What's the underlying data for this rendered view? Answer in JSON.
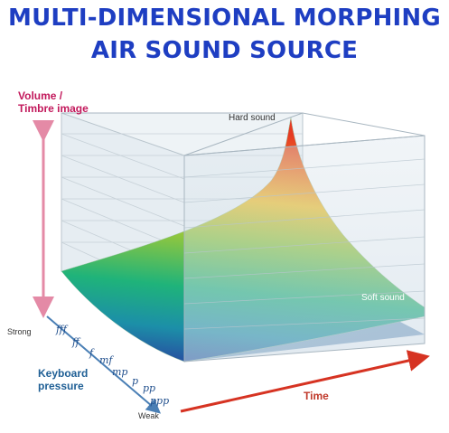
{
  "title": {
    "line1": "MULTI-DIMENSIONAL MORPHING",
    "line2": "AIR SOUND SOURCE"
  },
  "diagram": {
    "y_axis_label": [
      "Volume /",
      "Timbre image"
    ],
    "hard_label": "Hard sound",
    "soft_label": "Soft sound",
    "strong_label": "Strong",
    "weak_label": "Weak",
    "keyboard_label": [
      "Keyboard",
      "pressure"
    ],
    "time_label": "Time",
    "dynamics": [
      "fff",
      "ff",
      "f",
      "mf",
      "mp",
      "p",
      "pp",
      "ppp"
    ],
    "colors": {
      "title": "#1e3ec2",
      "volume_axis": "#c2185b",
      "keyboard_axis": "#1f5f95",
      "time_axis": "#c0392b"
    }
  }
}
